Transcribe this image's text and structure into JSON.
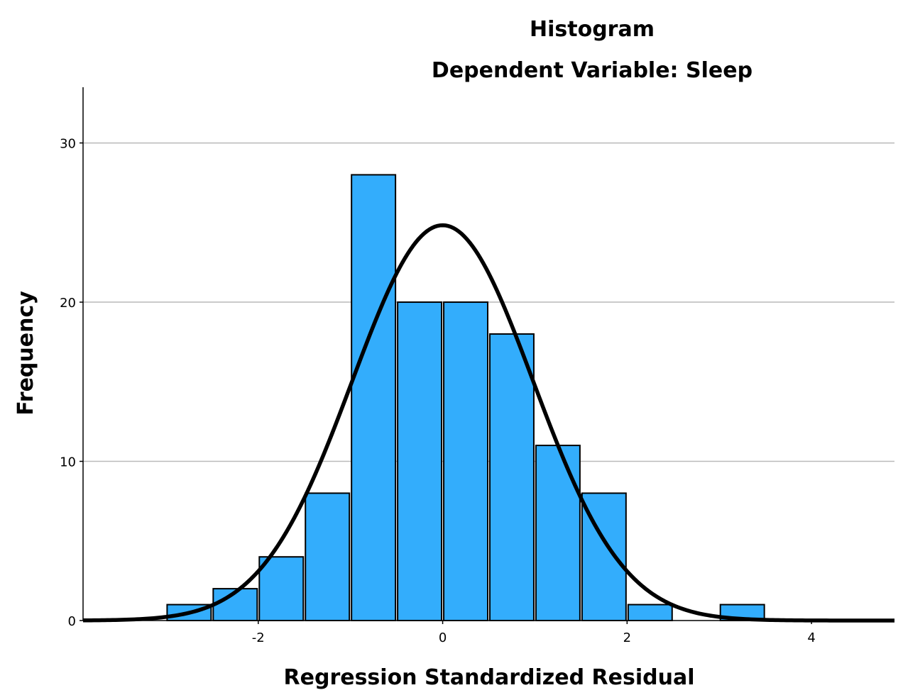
{
  "chart_data": {
    "type": "bar",
    "title": "Histogram",
    "subtitle": "Dependent Variable: Sleep",
    "xlabel": "Regression Standardized Residual",
    "ylabel": "Frequency",
    "xlim": [
      -3.9,
      4.9
    ],
    "ylim": [
      0,
      33.5
    ],
    "x_ticks": [
      -2,
      0,
      2,
      4
    ],
    "x_tick_labels": [
      "-2",
      "0",
      "2",
      "4"
    ],
    "y_ticks": [
      0,
      10,
      20,
      30
    ],
    "y_tick_labels": [
      "0",
      "10",
      "20",
      "30"
    ],
    "grid": true,
    "bin_width": 0.5,
    "bins": [
      {
        "start": -3.0,
        "end": -2.5,
        "count": 1
      },
      {
        "start": -2.5,
        "end": -2.0,
        "count": 2
      },
      {
        "start": -2.0,
        "end": -1.5,
        "count": 4
      },
      {
        "start": -1.5,
        "end": -1.0,
        "count": 8
      },
      {
        "start": -1.0,
        "end": -0.5,
        "count": 28
      },
      {
        "start": -0.5,
        "end": 0.0,
        "count": 20
      },
      {
        "start": 0.0,
        "end": 0.5,
        "count": 20
      },
      {
        "start": 0.5,
        "end": 1.0,
        "count": 18
      },
      {
        "start": 1.0,
        "end": 1.5,
        "count": 11
      },
      {
        "start": 1.5,
        "end": 2.0,
        "count": 8
      },
      {
        "start": 2.0,
        "end": 2.5,
        "count": 1
      },
      {
        "start": 2.5,
        "end": 3.0,
        "count": 0
      },
      {
        "start": 3.0,
        "end": 3.5,
        "count": 1
      }
    ],
    "normal_curve": {
      "mean": 0,
      "std": 0.98,
      "n": 122,
      "bin_width": 0.5
    }
  }
}
